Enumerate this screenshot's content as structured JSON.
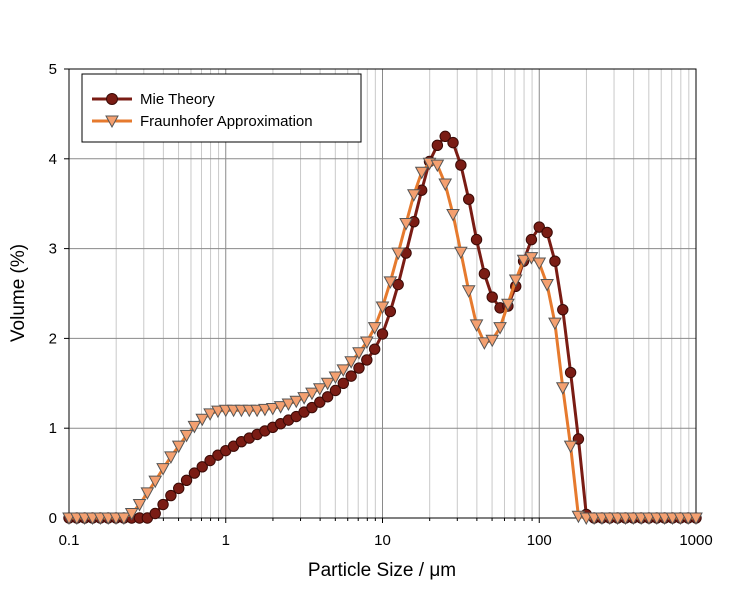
{
  "chart_data": {
    "type": "line",
    "xlabel": "Particle Size / μm",
    "ylabel": "Volume (%)",
    "x_scale": "log",
    "xlim": [
      0.1,
      1000
    ],
    "ylim": [
      0,
      5
    ],
    "x_ticks": [
      "0.1",
      "1",
      "10",
      "100",
      "1000"
    ],
    "y_ticks": [
      "0",
      "1",
      "2",
      "3",
      "4",
      "5"
    ],
    "grid": true,
    "legend_position": "top-left",
    "x": [
      0.1,
      0.1122,
      0.1259,
      0.1413,
      0.1585,
      0.1778,
      0.1995,
      0.2239,
      0.2512,
      0.2818,
      0.3162,
      0.3548,
      0.3981,
      0.4467,
      0.5012,
      0.5623,
      0.631,
      0.7079,
      0.7943,
      0.8913,
      1.0,
      1.122,
      1.259,
      1.413,
      1.585,
      1.778,
      1.995,
      2.239,
      2.512,
      2.818,
      3.162,
      3.548,
      3.981,
      4.467,
      5.012,
      5.623,
      6.31,
      7.079,
      7.943,
      8.913,
      10.0,
      11.22,
      12.59,
      14.13,
      15.85,
      17.78,
      19.95,
      22.39,
      25.12,
      28.18,
      31.62,
      35.48,
      39.81,
      44.67,
      50.12,
      56.23,
      63.1,
      70.79,
      79.43,
      89.13,
      100.0,
      112.2,
      125.9,
      141.3,
      158.5,
      177.8,
      199.5,
      223.9,
      251.2,
      281.8,
      316.2,
      354.8,
      398.1,
      446.7,
      501.2,
      562.3,
      631.0,
      707.9,
      794.3,
      891.3,
      1000.0
    ],
    "series": [
      {
        "name": "Mie Theory",
        "color": "#7a1c14",
        "marker": "circle",
        "values": [
          0,
          0,
          0,
          0,
          0,
          0,
          0,
          0,
          0,
          0,
          0,
          0.05,
          0.15,
          0.25,
          0.33,
          0.42,
          0.5,
          0.57,
          0.64,
          0.7,
          0.75,
          0.8,
          0.85,
          0.89,
          0.93,
          0.97,
          1.01,
          1.05,
          1.09,
          1.13,
          1.18,
          1.23,
          1.29,
          1.35,
          1.42,
          1.5,
          1.58,
          1.67,
          1.76,
          1.88,
          2.05,
          2.3,
          2.6,
          2.95,
          3.3,
          3.65,
          3.97,
          4.15,
          4.25,
          4.18,
          3.93,
          3.55,
          3.1,
          2.72,
          2.46,
          2.34,
          2.36,
          2.58,
          2.86,
          3.1,
          3.24,
          3.18,
          2.86,
          2.32,
          1.62,
          0.88,
          0.04,
          0,
          0,
          0,
          0,
          0,
          0,
          0,
          0,
          0,
          0,
          0,
          0,
          0,
          0
        ]
      },
      {
        "name": "Fraunhofer Approximation",
        "color": "#e67a2e",
        "marker": "triangle-down",
        "values": [
          0,
          0,
          0,
          0,
          0,
          0,
          0,
          0,
          0.05,
          0.15,
          0.28,
          0.41,
          0.55,
          0.68,
          0.8,
          0.92,
          1.02,
          1.1,
          1.16,
          1.19,
          1.2,
          1.2,
          1.2,
          1.2,
          1.2,
          1.21,
          1.22,
          1.24,
          1.27,
          1.3,
          1.34,
          1.39,
          1.44,
          1.5,
          1.57,
          1.65,
          1.74,
          1.84,
          1.96,
          2.12,
          2.35,
          2.63,
          2.95,
          3.28,
          3.6,
          3.85,
          3.95,
          3.93,
          3.72,
          3.38,
          2.96,
          2.53,
          2.15,
          1.95,
          1.98,
          2.12,
          2.38,
          2.65,
          2.87,
          2.9,
          2.84,
          2.6,
          2.17,
          1.45,
          0.8,
          0.02,
          0,
          0,
          0,
          0,
          0,
          0,
          0,
          0,
          0,
          0,
          0,
          0,
          0,
          0,
          0
        ]
      }
    ]
  }
}
